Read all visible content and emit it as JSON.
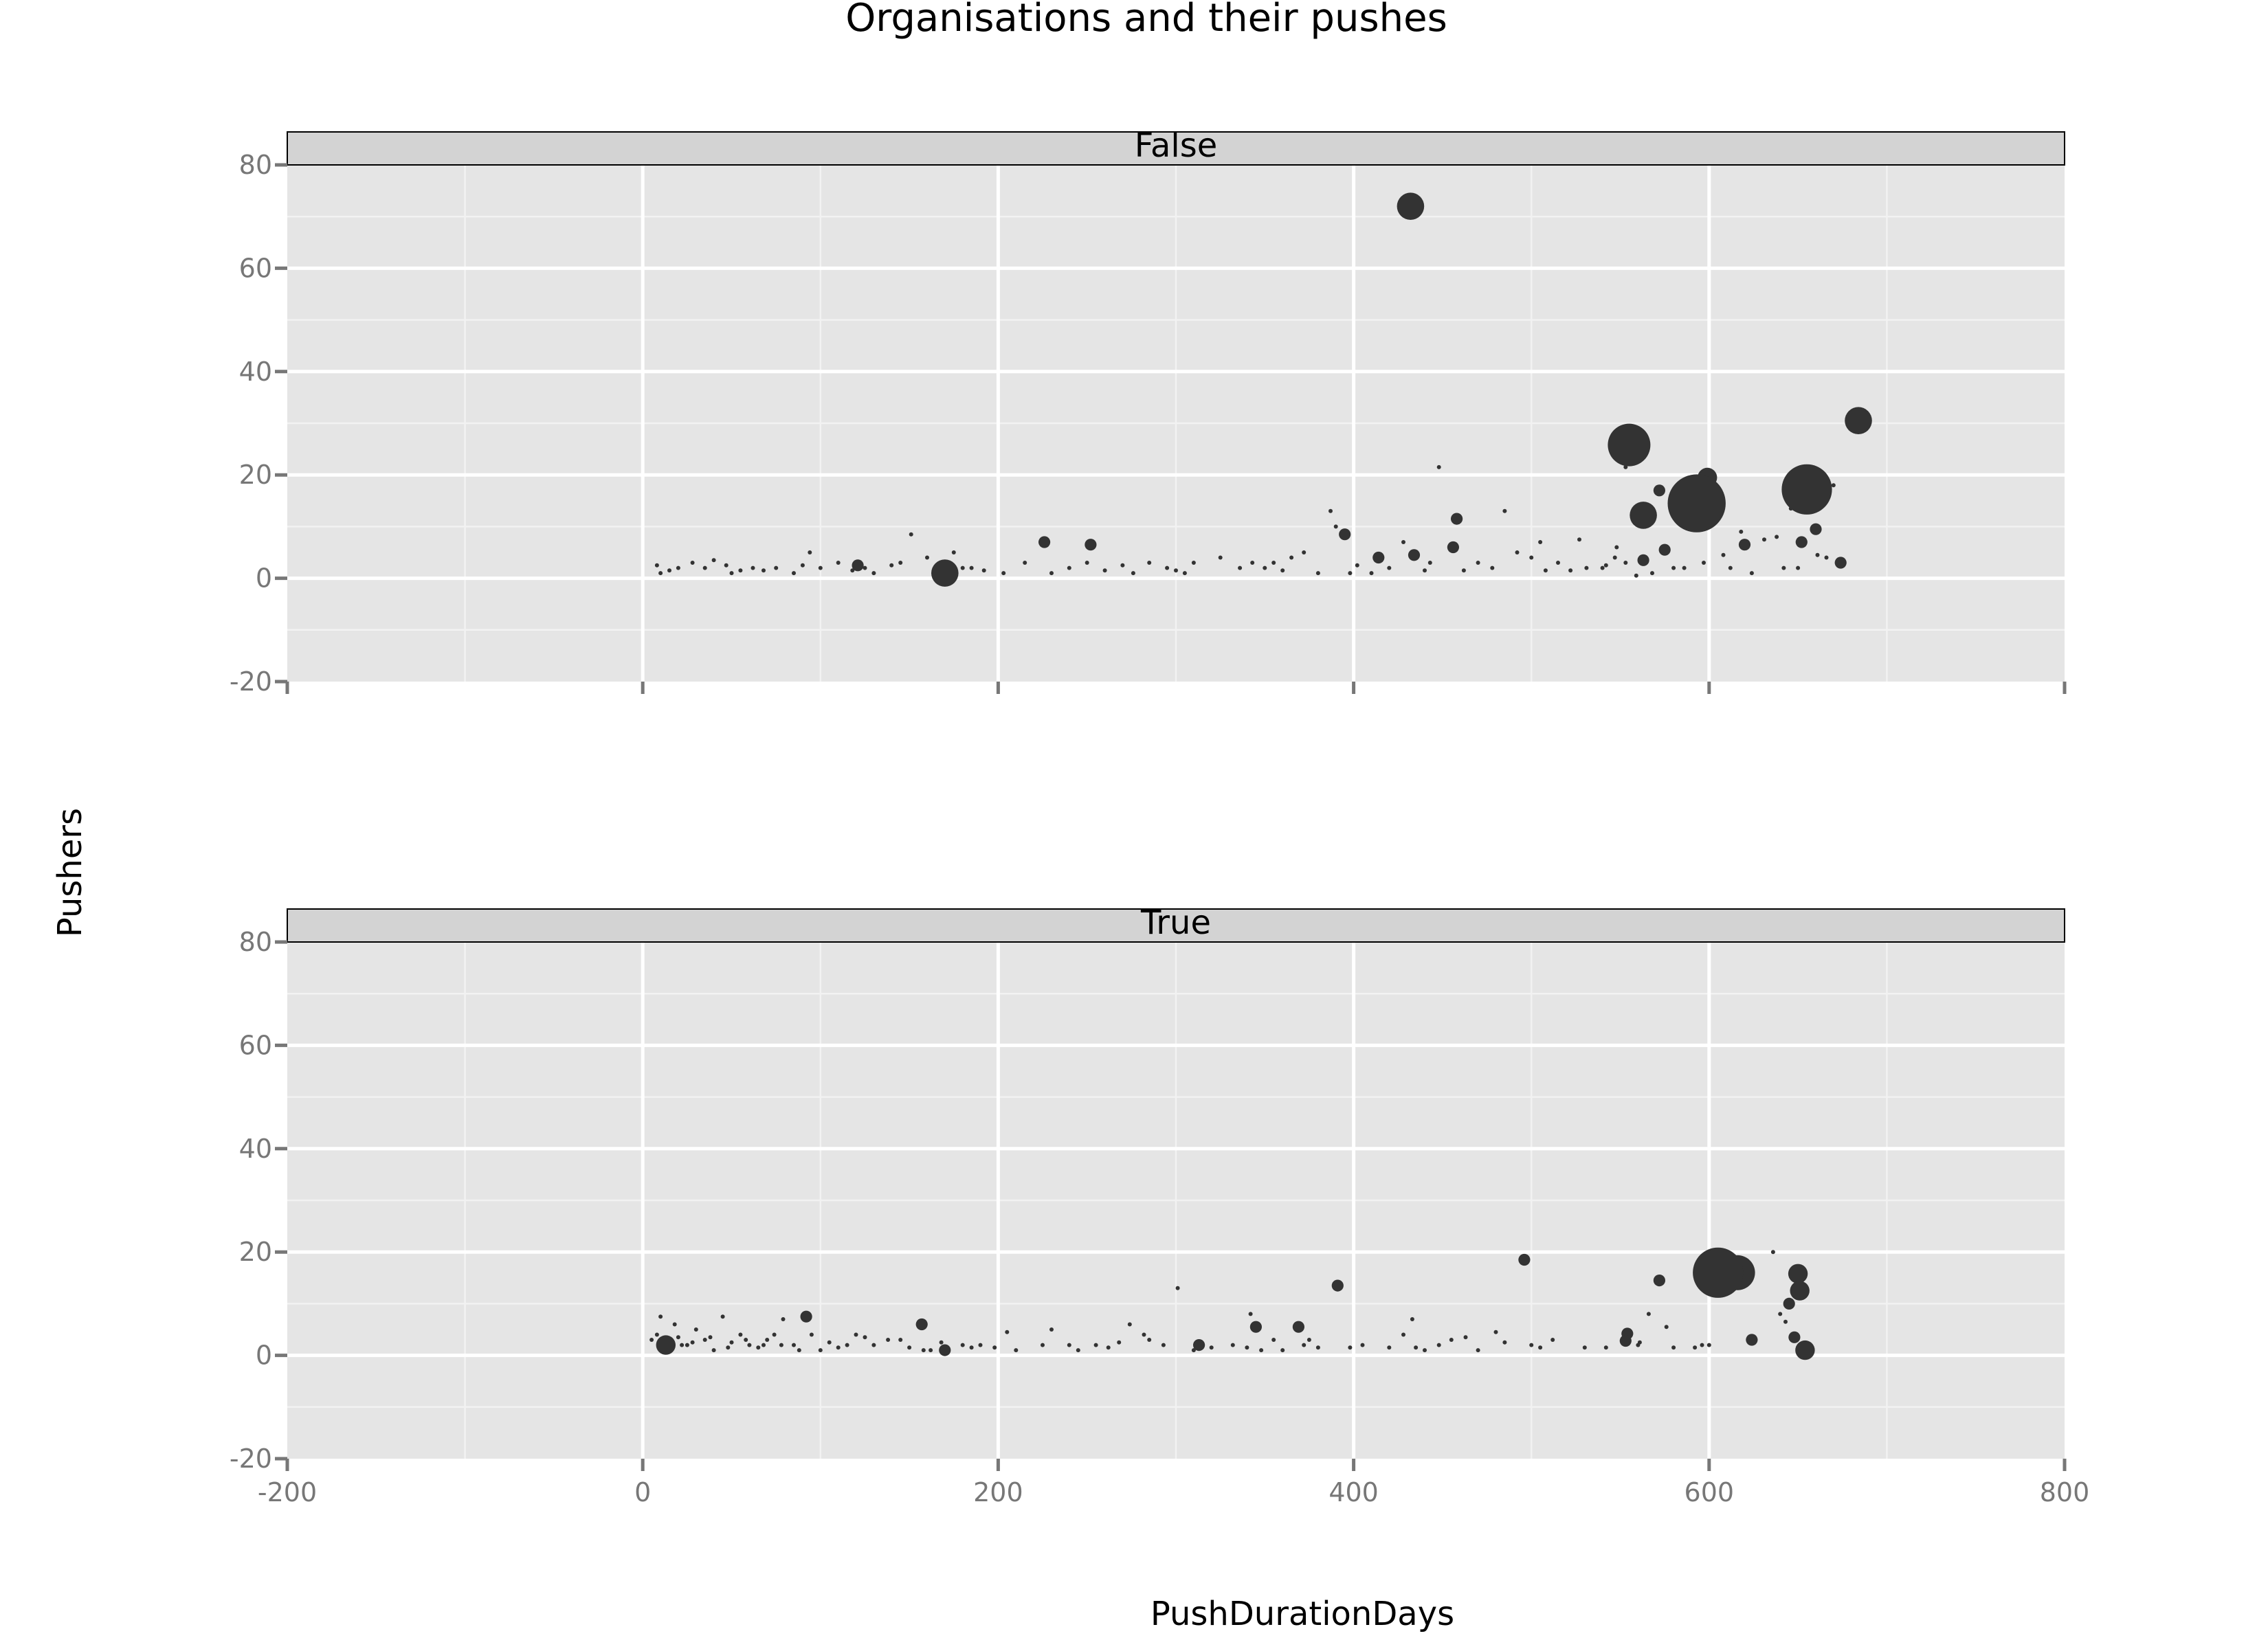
{
  "chart_data": {
    "type": "scatter",
    "title": "Organisations and their pushes",
    "xlabel": "PushDurationDays",
    "ylabel": "Pushers",
    "xlim": [
      -200,
      800
    ],
    "ylim": [
      -20,
      80
    ],
    "x_ticks": [
      "-200",
      "0",
      "200",
      "400",
      "600",
      "800"
    ],
    "y_ticks": [
      "-20",
      "0",
      "20",
      "40",
      "60",
      "80"
    ],
    "grid": true,
    "facet_by": "panel",
    "panels": [
      {
        "label": "False",
        "points": [
          [
            432,
            72,
            4
          ],
          [
            684,
            30.5,
            4
          ],
          [
            555,
            25.8,
            6
          ],
          [
            599,
            19.5,
            3
          ],
          [
            593,
            14.5,
            8
          ],
          [
            655,
            17.2,
            7
          ],
          [
            670,
            18,
            1
          ],
          [
            563,
            12.2,
            4
          ],
          [
            572,
            17,
            2
          ],
          [
            553,
            21.5,
            1
          ],
          [
            448,
            21.5,
            1
          ],
          [
            458,
            11.5,
            2
          ],
          [
            387,
            13,
            1
          ],
          [
            485,
            13,
            1
          ],
          [
            390,
            10,
            1
          ],
          [
            395,
            8.5,
            2
          ],
          [
            618,
            9,
            1
          ],
          [
            620,
            6.5,
            2
          ],
          [
            638,
            8,
            1
          ],
          [
            652,
            7,
            2
          ],
          [
            660,
            9.5,
            2
          ],
          [
            674,
            3,
            2
          ],
          [
            646,
            13.5,
            1
          ],
          [
            608,
            4.5,
            1
          ],
          [
            650,
            2,
            1
          ],
          [
            575,
            5.5,
            2
          ],
          [
            563,
            3.5,
            2
          ],
          [
            553,
            3,
            1
          ],
          [
            568,
            1,
            1
          ],
          [
            559,
            0.5,
            1
          ],
          [
            456,
            6,
            2
          ],
          [
            434,
            4.5,
            2
          ],
          [
            414,
            4,
            2
          ],
          [
            226,
            7,
            2
          ],
          [
            252,
            6.5,
            2
          ],
          [
            170,
            1,
            4
          ],
          [
            121,
            2.5,
            2
          ],
          [
            130,
            1,
            1
          ],
          [
            94,
            5,
            1
          ],
          [
            151,
            8.5,
            1
          ],
          [
            175,
            5,
            1
          ],
          [
            203,
            1,
            1
          ],
          [
            365,
            4,
            1
          ],
          [
            343,
            3,
            1
          ],
          [
            527,
            7.5,
            1
          ],
          [
            505,
            7,
            1
          ],
          [
            540,
            2,
            1
          ],
          [
            547,
            4,
            1
          ],
          [
            580,
            2,
            1
          ],
          [
            597,
            3,
            1
          ],
          [
            631,
            7.5,
            1
          ],
          [
            661,
            4.5,
            1
          ],
          [
            15,
            1.5,
            1
          ],
          [
            35,
            2,
            1
          ],
          [
            55,
            1.5,
            1
          ],
          [
            75,
            2,
            1
          ],
          [
            110,
            3,
            1
          ],
          [
            185,
            2,
            1
          ],
          [
            270,
            2.5,
            1
          ],
          [
            305,
            1,
            1
          ],
          [
            402,
            2.5,
            1
          ],
          [
            470,
            3,
            1
          ],
          [
            500,
            4,
            1
          ],
          [
            10,
            1,
            1
          ],
          [
            47,
            2.5,
            1
          ],
          [
            62,
            2,
            1
          ],
          [
            140,
            2.5,
            1
          ],
          [
            160,
            4,
            1
          ],
          [
            215,
            3,
            1
          ],
          [
            240,
            2,
            1
          ],
          [
            260,
            1.5,
            1
          ],
          [
            285,
            3,
            1
          ],
          [
            325,
            4,
            1
          ],
          [
            350,
            2,
            1
          ],
          [
            380,
            1,
            1
          ],
          [
            420,
            2,
            1
          ],
          [
            443,
            3,
            1
          ],
          [
            478,
            2,
            1
          ],
          [
            515,
            3,
            1
          ],
          [
            531,
            2,
            1
          ],
          [
            8,
            2.5,
            1
          ],
          [
            20,
            2,
            1
          ],
          [
            28,
            3,
            1
          ],
          [
            40,
            3.5,
            1
          ],
          [
            68,
            1.5,
            1
          ],
          [
            85,
            1,
            1
          ],
          [
            100,
            2,
            1
          ],
          [
            118,
            1.5,
            1
          ],
          [
            145,
            3,
            1
          ],
          [
            165,
            2,
            1
          ],
          [
            192,
            1.5,
            1
          ],
          [
            230,
            1,
            1
          ],
          [
            276,
            1,
            1
          ],
          [
            295,
            2,
            1
          ],
          [
            310,
            3,
            1
          ],
          [
            336,
            2,
            1
          ],
          [
            360,
            1.5,
            1
          ],
          [
            372,
            5,
            1
          ],
          [
            398,
            1,
            1
          ],
          [
            428,
            7,
            1
          ],
          [
            462,
            1.5,
            1
          ],
          [
            492,
            5,
            1
          ],
          [
            522,
            1.5,
            1
          ],
          [
            542,
            2.5,
            1
          ],
          [
            586,
            2,
            1
          ],
          [
            612,
            2,
            1
          ],
          [
            624,
            1,
            1
          ],
          [
            642,
            2,
            1
          ],
          [
            666,
            4,
            1
          ],
          [
            50,
            1,
            1
          ],
          [
            90,
            2.5,
            1
          ],
          [
            125,
            2,
            1
          ],
          [
            180,
            2,
            1
          ],
          [
            250,
            3,
            1
          ],
          [
            300,
            1.5,
            1
          ],
          [
            355,
            3,
            1
          ],
          [
            410,
            1,
            1
          ],
          [
            440,
            1.5,
            1
          ],
          [
            508,
            1.5,
            1
          ],
          [
            548,
            6,
            1
          ]
        ]
      },
      {
        "label": "True",
        "points": [
          [
            605,
            16,
            7
          ],
          [
            616,
            16,
            5
          ],
          [
            650,
            15.8,
            3
          ],
          [
            651,
            12.5,
            3
          ],
          [
            572,
            14.5,
            2
          ],
          [
            636,
            20,
            1
          ],
          [
            496,
            18.5,
            2
          ],
          [
            391,
            13.5,
            2
          ],
          [
            301,
            13,
            1
          ],
          [
            645,
            10,
            2
          ],
          [
            554,
            4.2,
            2
          ],
          [
            640,
            8,
            1
          ],
          [
            654,
            1,
            3
          ],
          [
            648,
            3.5,
            2
          ],
          [
            624,
            3,
            2
          ],
          [
            643,
            6.5,
            1
          ],
          [
            553,
            2.8,
            2
          ],
          [
            369,
            5.5,
            2
          ],
          [
            345,
            5.5,
            2
          ],
          [
            342,
            8,
            1
          ],
          [
            433,
            7,
            1
          ],
          [
            313,
            2,
            2
          ],
          [
            157,
            6,
            2
          ],
          [
            92,
            7.5,
            2
          ],
          [
            79,
            7,
            1
          ],
          [
            170,
            1,
            2
          ],
          [
            13,
            2,
            3
          ],
          [
            10,
            7.5,
            1
          ],
          [
            30,
            5,
            1
          ],
          [
            45,
            7.5,
            1
          ],
          [
            60,
            2,
            1
          ],
          [
            74,
            4,
            1
          ],
          [
            100,
            1,
            1
          ],
          [
            120,
            4,
            1
          ],
          [
            145,
            3,
            1
          ],
          [
            190,
            2,
            1
          ],
          [
            205,
            4.5,
            1
          ],
          [
            225,
            2,
            1
          ],
          [
            255,
            2,
            1
          ],
          [
            274,
            6,
            1
          ],
          [
            285,
            3,
            1
          ],
          [
            320,
            1.5,
            1
          ],
          [
            355,
            3,
            1
          ],
          [
            372,
            2,
            1
          ],
          [
            405,
            2,
            1
          ],
          [
            428,
            4,
            1
          ],
          [
            440,
            1,
            1
          ],
          [
            455,
            3,
            1
          ],
          [
            470,
            1,
            1
          ],
          [
            500,
            2,
            1
          ],
          [
            512,
            3,
            1
          ],
          [
            566,
            8,
            1
          ],
          [
            596,
            2,
            1
          ],
          [
            5,
            3,
            1
          ],
          [
            8,
            4,
            1
          ],
          [
            15,
            1,
            1
          ],
          [
            20,
            3.5,
            1
          ],
          [
            25,
            2,
            1
          ],
          [
            35,
            3,
            1
          ],
          [
            40,
            1,
            1
          ],
          [
            50,
            2.5,
            1
          ],
          [
            55,
            4,
            1
          ],
          [
            65,
            1.5,
            1
          ],
          [
            70,
            3,
            1
          ],
          [
            85,
            2,
            1
          ],
          [
            95,
            4,
            1
          ],
          [
            105,
            2.5,
            1
          ],
          [
            110,
            1.5,
            1
          ],
          [
            130,
            2,
            1
          ],
          [
            138,
            3,
            1
          ],
          [
            150,
            1.5,
            1
          ],
          [
            162,
            1,
            1
          ],
          [
            180,
            2,
            1
          ],
          [
            198,
            1.5,
            1
          ],
          [
            210,
            1,
            1
          ],
          [
            240,
            2,
            1
          ],
          [
            262,
            1.5,
            1
          ],
          [
            293,
            2,
            1
          ],
          [
            332,
            2,
            1
          ],
          [
            360,
            1,
            1
          ],
          [
            380,
            1.5,
            1
          ],
          [
            420,
            1.5,
            1
          ],
          [
            448,
            2,
            1
          ],
          [
            485,
            2.5,
            1
          ],
          [
            505,
            1.5,
            1
          ],
          [
            560,
            2,
            1
          ],
          [
            576,
            5.5,
            1
          ],
          [
            580,
            1.5,
            1
          ],
          [
            18,
            6,
            1
          ],
          [
            28,
            2.5,
            1
          ],
          [
            48,
            1.5,
            1
          ],
          [
            58,
            3,
            1
          ],
          [
            88,
            1,
            1
          ],
          [
            115,
            2,
            1
          ],
          [
            168,
            2.5,
            1
          ],
          [
            230,
            5,
            1
          ],
          [
            268,
            2.5,
            1
          ],
          [
            310,
            1,
            1
          ],
          [
            340,
            1.5,
            1
          ],
          [
            398,
            1.5,
            1
          ],
          [
            463,
            3.5,
            1
          ],
          [
            530,
            1.5,
            1
          ],
          [
            600,
            2,
            1
          ],
          [
            12,
            1.5,
            1
          ],
          [
            22,
            2,
            1
          ],
          [
            38,
            3.5,
            1
          ],
          [
            68,
            2,
            1
          ],
          [
            78,
            2,
            1
          ],
          [
            125,
            3.5,
            1
          ],
          [
            158,
            1,
            1
          ],
          [
            185,
            1.5,
            1
          ],
          [
            245,
            1,
            1
          ],
          [
            282,
            4,
            1
          ],
          [
            348,
            1,
            1
          ],
          [
            375,
            3,
            1
          ],
          [
            435,
            1.5,
            1
          ],
          [
            480,
            4.5,
            1
          ],
          [
            542,
            1.5,
            1
          ],
          [
            561,
            2.5,
            1
          ],
          [
            592,
            1.5,
            1
          ]
        ]
      }
    ]
  }
}
